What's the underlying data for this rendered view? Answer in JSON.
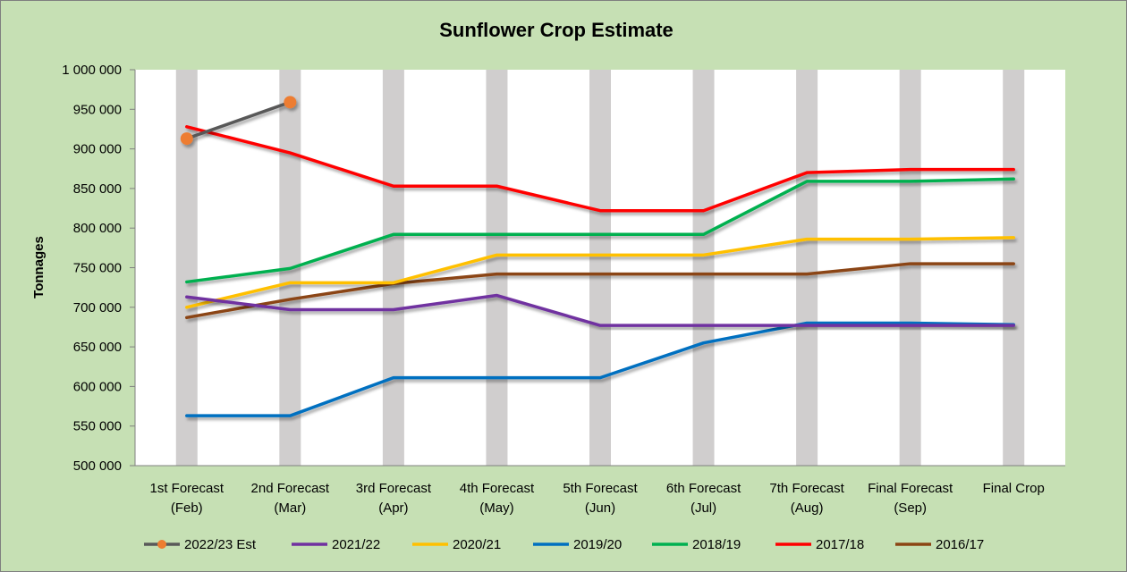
{
  "chart_data": {
    "type": "line",
    "title": "Sunflower Crop Estimate",
    "xlabel": "",
    "ylabel": "Tonnages",
    "ylim": [
      500000,
      1000000
    ],
    "y_ticks": [
      500000,
      550000,
      600000,
      650000,
      700000,
      750000,
      800000,
      850000,
      900000,
      950000,
      1000000
    ],
    "y_tick_labels": [
      "500 000",
      "550 000",
      "600 000",
      "650 000",
      "700 000",
      "750 000",
      "800 000",
      "850 000",
      "900 000",
      "950 000",
      "1 000 000"
    ],
    "categories": [
      [
        "1st Forecast",
        "(Feb)"
      ],
      [
        "2nd Forecast",
        "(Mar)"
      ],
      [
        "3rd Forecast",
        "(Apr)"
      ],
      [
        "4th Forecast",
        "(May)"
      ],
      [
        "5th Forecast",
        "(Jun)"
      ],
      [
        "6th Forecast",
        "(Jul)"
      ],
      [
        "7th Forecast",
        "(Aug)"
      ],
      [
        "Final Forecast",
        "(Sep)"
      ],
      [
        "Final Crop",
        ""
      ]
    ],
    "grid": false,
    "vertical_bands": true,
    "legend_position": "bottom",
    "series": [
      {
        "name": "2022/23 Est",
        "color": "#595959",
        "marker": "circle",
        "marker_color": "#ed7d31",
        "values": [
          913000,
          959000,
          null,
          null,
          null,
          null,
          null,
          null,
          null
        ]
      },
      {
        "name": "2021/22",
        "color": "#7030a0",
        "values": [
          713000,
          697000,
          697000,
          715000,
          677000,
          677000,
          677000,
          677000,
          677000
        ]
      },
      {
        "name": "2020/21",
        "color": "#ffc000",
        "values": [
          700000,
          731000,
          731000,
          766000,
          766000,
          766000,
          786000,
          786000,
          788000
        ]
      },
      {
        "name": "2019/20",
        "color": "#0070c0",
        "values": [
          563000,
          563000,
          611000,
          611000,
          611000,
          655000,
          680000,
          680000,
          678000
        ]
      },
      {
        "name": "2018/19",
        "color": "#00b050",
        "values": [
          732000,
          749000,
          792000,
          792000,
          792000,
          792000,
          859000,
          859000,
          862000
        ]
      },
      {
        "name": "2017/18",
        "color": "#ff0000",
        "values": [
          928000,
          895000,
          853000,
          853000,
          822000,
          822000,
          870000,
          874000,
          874000
        ]
      },
      {
        "name": "2016/17",
        "color": "#8b4513",
        "values": [
          687000,
          710000,
          730000,
          742000,
          742000,
          742000,
          742000,
          755000,
          755000
        ]
      }
    ]
  }
}
